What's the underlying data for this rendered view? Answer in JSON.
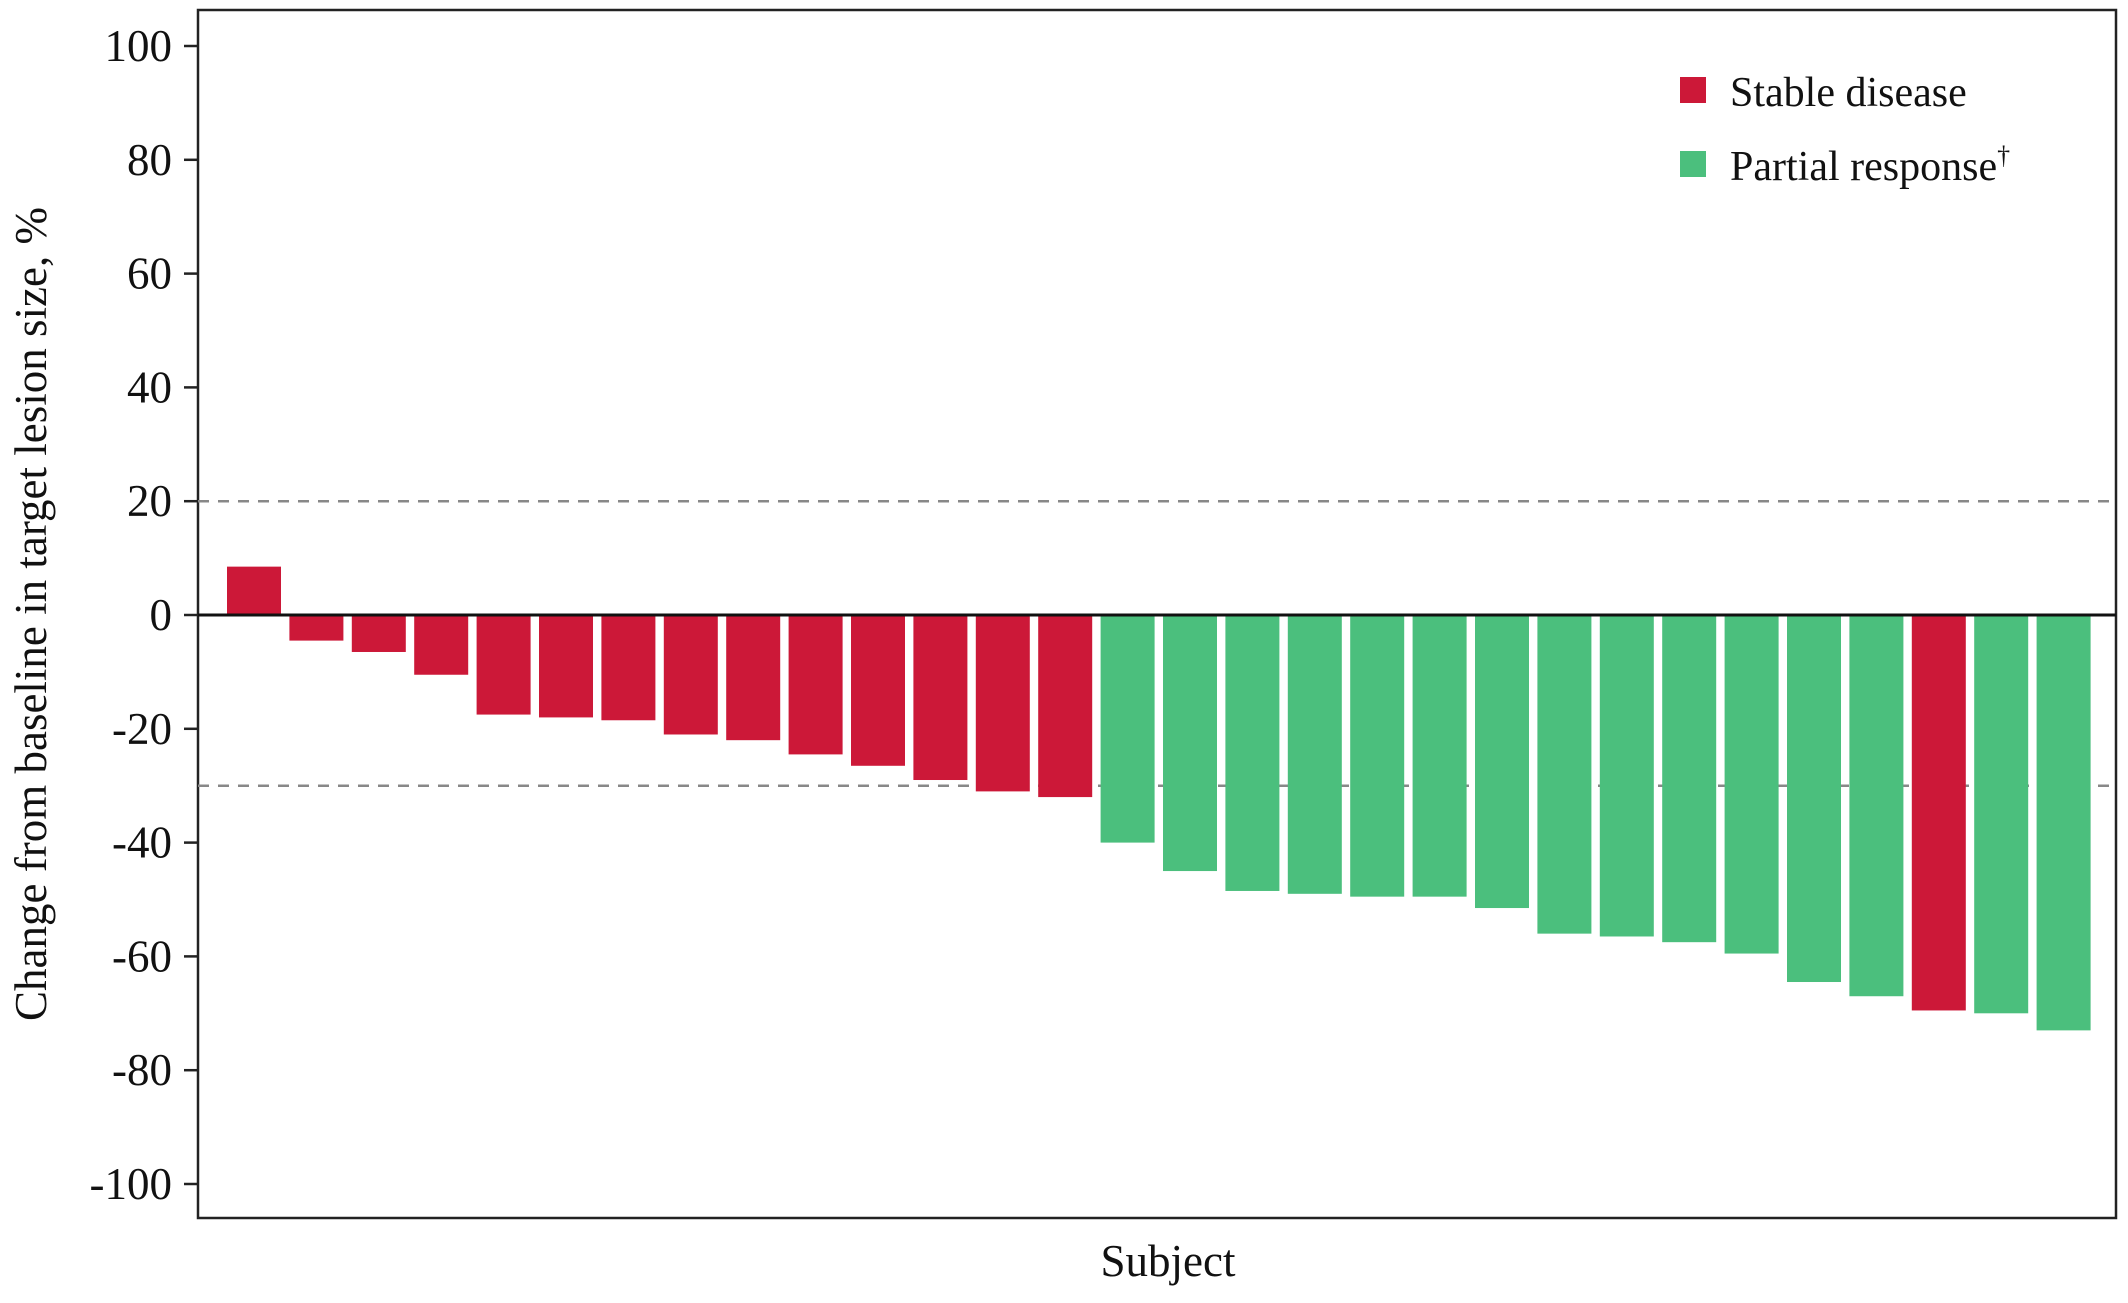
{
  "chart_data": {
    "type": "bar",
    "title": "",
    "xlabel": "Subject",
    "ylabel": "Change from baseline in target lesion size, %",
    "ylim": [
      -107,
      107
    ],
    "yticks": [
      100,
      80,
      60,
      40,
      20,
      0,
      -20,
      -40,
      -60,
      -80,
      -100
    ],
    "reference_lines": [
      20,
      -30
    ],
    "grid": false,
    "legend_position": "top-right",
    "colors": {
      "Stable disease": "#cc1838",
      "Partial response": "#4bbf7d"
    },
    "legend": [
      {
        "label": "Stable disease",
        "marker": "",
        "category": "Stable disease"
      },
      {
        "label": "Partial response",
        "marker": "†",
        "category": "Partial response"
      }
    ],
    "values": [
      8.5,
      -4.5,
      -6.5,
      -10.5,
      -17.5,
      -18,
      -18.5,
      -21,
      -22,
      -24.5,
      -26.5,
      -29,
      -31,
      -32,
      -40,
      -45,
      -48.5,
      -49,
      -49.5,
      -49.5,
      -51.5,
      -56,
      -56.5,
      -57.5,
      -59.5,
      -64.5,
      -67,
      -69.5,
      -70,
      -73
    ],
    "categories": [
      "Stable disease",
      "Stable disease",
      "Stable disease",
      "Stable disease",
      "Stable disease",
      "Stable disease",
      "Stable disease",
      "Stable disease",
      "Stable disease",
      "Stable disease",
      "Stable disease",
      "Stable disease",
      "Stable disease",
      "Stable disease",
      "Partial response",
      "Partial response",
      "Partial response",
      "Partial response",
      "Partial response",
      "Partial response",
      "Partial response",
      "Partial response",
      "Partial response",
      "Partial response",
      "Partial response",
      "Partial response",
      "Partial response",
      "Stable disease",
      "Partial response",
      "Partial response"
    ]
  }
}
